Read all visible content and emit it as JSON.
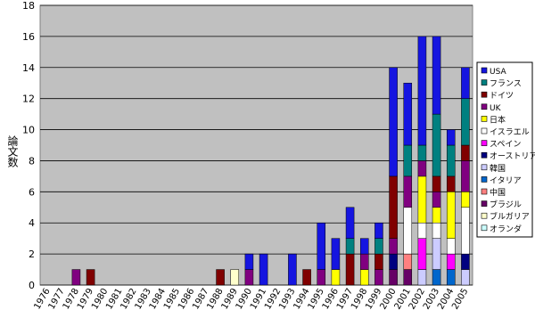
{
  "chart_data": {
    "type": "bar",
    "stacked": true,
    "y_label": "論文数",
    "categories": [
      "1976",
      "1977",
      "1978",
      "1979",
      "1980",
      "1981",
      "1982",
      "1983",
      "1984",
      "1985",
      "1986",
      "1987",
      "1988",
      "1989",
      "1990",
      "1991",
      "1992",
      "1993",
      "1994",
      "1995",
      "1996",
      "1997",
      "1998",
      "1999",
      "2000",
      "2001",
      "2002",
      "2003",
      "2004",
      "2005"
    ],
    "ylim": [
      0,
      18
    ],
    "yticks": [
      0,
      2,
      4,
      6,
      8,
      10,
      12,
      14,
      16,
      18
    ],
    "grid": true,
    "legend": "right",
    "series": [
      {
        "name": "USA",
        "color": "#1515e0",
        "values": [
          0,
          0,
          0,
          0,
          0,
          0,
          0,
          0,
          0,
          0,
          0,
          0,
          0,
          0,
          1,
          2,
          0,
          2,
          0,
          3,
          2,
          2,
          1,
          1,
          7,
          4,
          7,
          5,
          1,
          2
        ]
      },
      {
        "name": "フランス",
        "color": "#008080",
        "values": [
          0,
          0,
          0,
          0,
          0,
          0,
          0,
          0,
          0,
          0,
          0,
          0,
          0,
          0,
          0,
          0,
          0,
          0,
          0,
          0,
          0,
          1,
          0,
          1,
          0,
          2,
          1,
          4,
          2,
          3
        ]
      },
      {
        "name": "ドイツ",
        "color": "#800000",
        "values": [
          0,
          0,
          0,
          1,
          0,
          0,
          0,
          0,
          0,
          0,
          0,
          0,
          1,
          0,
          0,
          0,
          0,
          0,
          1,
          0,
          0,
          2,
          0,
          1,
          4,
          0,
          0,
          1,
          1,
          1
        ]
      },
      {
        "name": "UK",
        "color": "#800080",
        "values": [
          0,
          0,
          1,
          0,
          0,
          0,
          0,
          0,
          0,
          0,
          0,
          0,
          0,
          0,
          1,
          0,
          0,
          0,
          0,
          1,
          0,
          0,
          1,
          1,
          1,
          2,
          1,
          1,
          0,
          2
        ]
      },
      {
        "name": "日本",
        "color": "#ffff00",
        "values": [
          0,
          0,
          0,
          0,
          0,
          0,
          0,
          0,
          0,
          0,
          0,
          0,
          0,
          0,
          0,
          0,
          0,
          0,
          0,
          0,
          1,
          0,
          1,
          0,
          0,
          0,
          3,
          1,
          3,
          1
        ]
      },
      {
        "name": "イスラエル",
        "color": "#ffffff",
        "values": [
          0,
          0,
          0,
          0,
          0,
          0,
          0,
          0,
          0,
          0,
          0,
          0,
          0,
          0,
          0,
          0,
          0,
          0,
          0,
          0,
          0,
          0,
          0,
          0,
          0,
          3,
          1,
          1,
          1,
          3
        ]
      },
      {
        "name": "スペイン",
        "color": "#ff00ff",
        "values": [
          0,
          0,
          0,
          0,
          0,
          0,
          0,
          0,
          0,
          0,
          0,
          0,
          0,
          0,
          0,
          0,
          0,
          0,
          0,
          0,
          0,
          0,
          0,
          0,
          0,
          0,
          2,
          0,
          1,
          0
        ]
      },
      {
        "name": "オーストリア",
        "color": "#000080",
        "values": [
          0,
          0,
          0,
          0,
          0,
          0,
          0,
          0,
          0,
          0,
          0,
          0,
          0,
          0,
          0,
          0,
          0,
          0,
          0,
          0,
          0,
          0,
          0,
          0,
          1,
          0,
          0,
          0,
          0,
          1
        ]
      },
      {
        "name": "韓国",
        "color": "#ccccff",
        "values": [
          0,
          0,
          0,
          0,
          0,
          0,
          0,
          0,
          0,
          0,
          0,
          0,
          0,
          0,
          0,
          0,
          0,
          0,
          0,
          0,
          0,
          0,
          0,
          0,
          0,
          0,
          1,
          2,
          0,
          1
        ]
      },
      {
        "name": "イタリア",
        "color": "#0066cc",
        "values": [
          0,
          0,
          0,
          0,
          0,
          0,
          0,
          0,
          0,
          0,
          0,
          0,
          0,
          0,
          0,
          0,
          0,
          0,
          0,
          0,
          0,
          0,
          0,
          0,
          0,
          0,
          0,
          1,
          1,
          0
        ]
      },
      {
        "name": "中国",
        "color": "#ff8080",
        "values": [
          0,
          0,
          0,
          0,
          0,
          0,
          0,
          0,
          0,
          0,
          0,
          0,
          0,
          0,
          0,
          0,
          0,
          0,
          0,
          0,
          0,
          0,
          0,
          0,
          0,
          1,
          0,
          0,
          0,
          0
        ]
      },
      {
        "name": "ブラジル",
        "color": "#660066",
        "values": [
          0,
          0,
          0,
          0,
          0,
          0,
          0,
          0,
          0,
          0,
          0,
          0,
          0,
          0,
          0,
          0,
          0,
          0,
          0,
          0,
          0,
          0,
          0,
          0,
          1,
          1,
          0,
          0,
          0,
          0
        ]
      },
      {
        "name": "ブルガリア",
        "color": "#ffffcc",
        "values": [
          0,
          0,
          0,
          0,
          0,
          0,
          0,
          0,
          0,
          0,
          0,
          0,
          0,
          1,
          0,
          0,
          0,
          0,
          0,
          0,
          0,
          0,
          0,
          0,
          0,
          0,
          0,
          0,
          0,
          0
        ]
      },
      {
        "name": "オランダ",
        "color": "#ccffff",
        "values": [
          0,
          0,
          0,
          0,
          0,
          0,
          0,
          0,
          0,
          0,
          0,
          0,
          0,
          0,
          0,
          0,
          0,
          0,
          0,
          0,
          0,
          0,
          0,
          0,
          0,
          0,
          0,
          0,
          0,
          0
        ]
      }
    ]
  }
}
